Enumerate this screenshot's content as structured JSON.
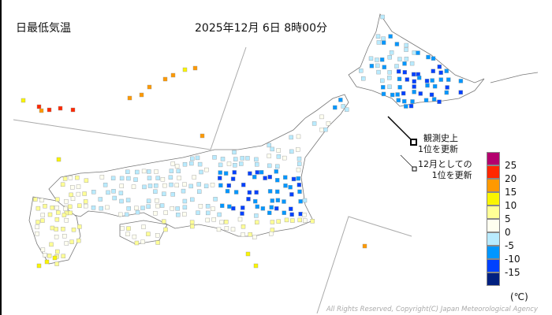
{
  "title": "日最低気温",
  "datetime": "2025年12月 6日 8時00分",
  "notes": {
    "record_alltime": [
      "観測史上",
      "1位を更新"
    ],
    "record_december": [
      "12月としての",
      "1位を更新"
    ]
  },
  "legend": {
    "unit": "(℃)",
    "bins": [
      {
        "color": "#b4006e",
        "label": "25"
      },
      {
        "color": "#ff2800",
        "label": "20"
      },
      {
        "color": "#ff9900",
        "label": "15"
      },
      {
        "color": "#faf500",
        "label": "10"
      },
      {
        "color": "#ffff96",
        "label": "5"
      },
      {
        "color": "#fffff0",
        "label": "0"
      },
      {
        "color": "#b9ebff",
        "label": "-5"
      },
      {
        "color": "#0096ff",
        "label": "-10"
      },
      {
        "color": "#0041ff",
        "label": "-15"
      },
      {
        "color": "#002080",
        "label": ""
      }
    ]
  },
  "copyright": "All Rights Reserved, Copyright(C) Japan Meteorological Agency"
}
